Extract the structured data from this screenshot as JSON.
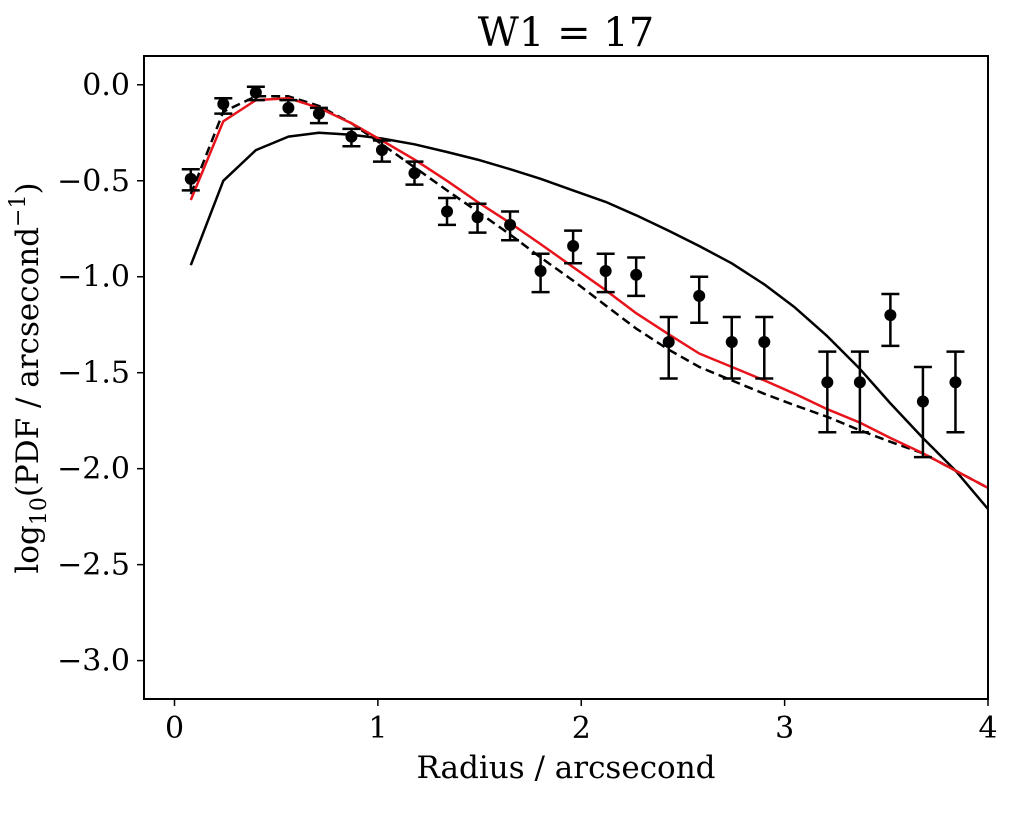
{
  "chart_data": {
    "type": "line",
    "title": "W1 = 17",
    "xlabel": "Radius / arcsecond",
    "ylabel": {
      "pre": "log",
      "sub": "10",
      "mid": "(PDF / arcsecond",
      "sup": "−1",
      "post": ")"
    },
    "xlim": [
      -0.15,
      4.0
    ],
    "ylim": [
      -3.2,
      0.15
    ],
    "x_ticks": [
      0,
      1,
      2,
      3,
      4
    ],
    "x_tick_labels": [
      "0",
      "1",
      "2",
      "3",
      "4"
    ],
    "y_ticks": [
      0.0,
      -0.5,
      -1.0,
      -1.5,
      -2.0,
      -2.5,
      -3.0
    ],
    "y_tick_labels": [
      "0.0",
      "−0.5",
      "−1.0",
      "−1.5",
      "−2.0",
      "−2.5",
      "−3.0"
    ],
    "grid": false,
    "legend": "none",
    "series": [
      {
        "style": "errorbar",
        "color": "#000000",
        "points": [
          {
            "x": 0.08,
            "y": -0.49,
            "ylo": -0.55,
            "yhi": -0.44
          },
          {
            "x": 0.24,
            "y": -0.1,
            "ylo": -0.15,
            "yhi": -0.07
          },
          {
            "x": 0.4,
            "y": -0.04,
            "ylo": -0.08,
            "yhi": -0.01
          },
          {
            "x": 0.56,
            "y": -0.12,
            "ylo": -0.16,
            "yhi": -0.08
          },
          {
            "x": 0.71,
            "y": -0.15,
            "ylo": -0.2,
            "yhi": -0.12
          },
          {
            "x": 0.87,
            "y": -0.27,
            "ylo": -0.32,
            "yhi": -0.23
          },
          {
            "x": 1.02,
            "y": -0.34,
            "ylo": -0.4,
            "yhi": -0.29
          },
          {
            "x": 1.18,
            "y": -0.46,
            "ylo": -0.52,
            "yhi": -0.4
          },
          {
            "x": 1.34,
            "y": -0.66,
            "ylo": -0.73,
            "yhi": -0.59
          },
          {
            "x": 1.49,
            "y": -0.69,
            "ylo": -0.77,
            "yhi": -0.62
          },
          {
            "x": 1.65,
            "y": -0.73,
            "ylo": -0.81,
            "yhi": -0.66
          },
          {
            "x": 1.8,
            "y": -0.97,
            "ylo": -1.08,
            "yhi": -0.88
          },
          {
            "x": 1.96,
            "y": -0.84,
            "ylo": -0.93,
            "yhi": -0.76
          },
          {
            "x": 2.12,
            "y": -0.97,
            "ylo": -1.08,
            "yhi": -0.88
          },
          {
            "x": 2.27,
            "y": -0.99,
            "ylo": -1.1,
            "yhi": -0.9
          },
          {
            "x": 2.43,
            "y": -1.34,
            "ylo": -1.53,
            "yhi": -1.21
          },
          {
            "x": 2.58,
            "y": -1.1,
            "ylo": -1.24,
            "yhi": -1.0
          },
          {
            "x": 2.74,
            "y": -1.34,
            "ylo": -1.53,
            "yhi": -1.21
          },
          {
            "x": 2.9,
            "y": -1.34,
            "ylo": -1.53,
            "yhi": -1.21
          },
          {
            "x": 3.21,
            "y": -1.55,
            "ylo": -1.81,
            "yhi": -1.39
          },
          {
            "x": 3.37,
            "y": -1.55,
            "ylo": -1.81,
            "yhi": -1.39
          },
          {
            "x": 3.52,
            "y": -1.2,
            "ylo": -1.36,
            "yhi": -1.09
          },
          {
            "x": 3.68,
            "y": -1.65,
            "ylo": -1.94,
            "yhi": -1.47
          },
          {
            "x": 3.84,
            "y": -1.55,
            "ylo": -1.81,
            "yhi": -1.39
          }
        ]
      },
      {
        "style": "solid",
        "color": "#000000",
        "x": [
          0.08,
          0.24,
          0.4,
          0.56,
          0.71,
          0.87,
          1.02,
          1.18,
          1.34,
          1.49,
          1.65,
          1.8,
          1.96,
          2.12,
          2.27,
          2.43,
          2.58,
          2.74,
          2.9,
          3.05,
          3.21,
          3.37,
          3.52,
          3.68,
          3.84,
          4.0
        ],
        "y": [
          -0.94,
          -0.5,
          -0.34,
          -0.27,
          -0.25,
          -0.26,
          -0.28,
          -0.31,
          -0.35,
          -0.39,
          -0.44,
          -0.49,
          -0.55,
          -0.61,
          -0.68,
          -0.76,
          -0.84,
          -0.93,
          -1.04,
          -1.16,
          -1.31,
          -1.48,
          -1.66,
          -1.84,
          -2.01,
          -2.21
        ]
      },
      {
        "style": "dashed",
        "color": "#000000",
        "x": [
          0.08,
          0.24,
          0.4,
          0.56,
          0.71,
          0.87,
          1.02,
          1.18,
          1.34,
          1.49,
          1.65,
          1.8,
          1.96,
          2.12,
          2.27,
          2.43,
          2.58,
          2.74,
          2.9,
          3.05,
          3.21,
          3.37,
          3.52,
          3.68,
          3.84,
          4.0
        ],
        "y": [
          -0.57,
          -0.14,
          -0.06,
          -0.06,
          -0.11,
          -0.2,
          -0.31,
          -0.43,
          -0.55,
          -0.66,
          -0.78,
          -0.9,
          -1.02,
          -1.15,
          -1.27,
          -1.38,
          -1.47,
          -1.54,
          -1.61,
          -1.67,
          -1.73,
          -1.8,
          -1.86,
          -1.92,
          -2.01,
          -2.1
        ]
      },
      {
        "style": "solid",
        "color": "#e8141c",
        "x": [
          0.08,
          0.24,
          0.4,
          0.56,
          0.71,
          0.87,
          1.02,
          1.18,
          1.34,
          1.49,
          1.65,
          1.8,
          1.96,
          2.12,
          2.27,
          2.43,
          2.58,
          2.74,
          2.9,
          3.05,
          3.21,
          3.37,
          3.52,
          3.68,
          3.84,
          4.0
        ],
        "y": [
          -0.6,
          -0.19,
          -0.08,
          -0.07,
          -0.12,
          -0.2,
          -0.29,
          -0.39,
          -0.5,
          -0.61,
          -0.72,
          -0.83,
          -0.95,
          -1.07,
          -1.19,
          -1.3,
          -1.4,
          -1.47,
          -1.54,
          -1.61,
          -1.69,
          -1.76,
          -1.84,
          -1.92,
          -2.01,
          -2.1
        ]
      }
    ]
  }
}
